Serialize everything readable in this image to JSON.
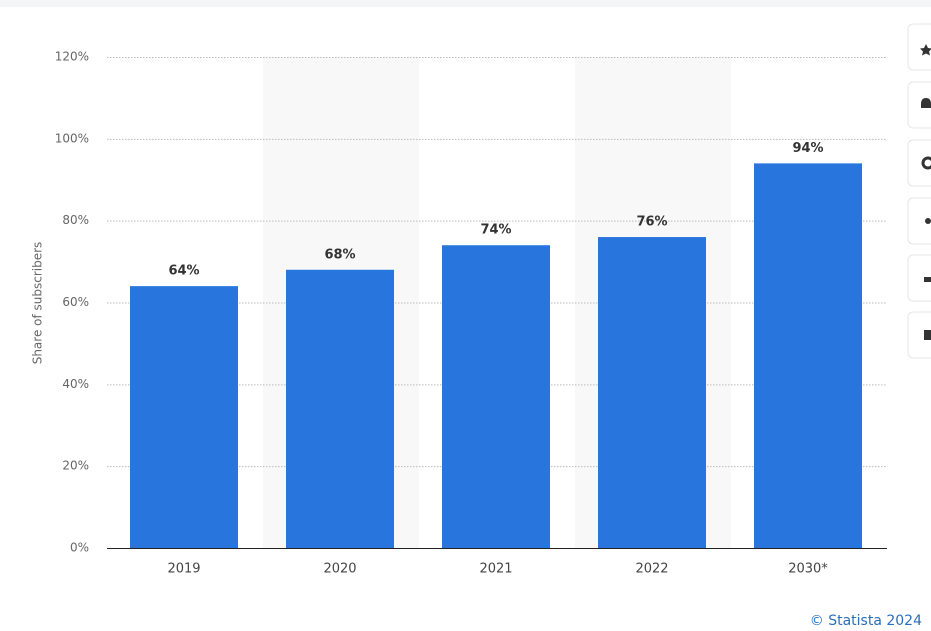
{
  "chart_data": {
    "type": "bar",
    "y_axis_label": "Share of subscribers",
    "categories": [
      "2019",
      "2020",
      "2021",
      "2022",
      "2030*"
    ],
    "values": [
      64,
      68,
      74,
      76,
      94
    ],
    "value_labels": [
      "64%",
      "68%",
      "74%",
      "76%",
      "94%"
    ],
    "color": "#2876dd",
    "ylim": [
      0,
      120
    ],
    "yticks": [
      {
        "value": 0,
        "label": "0%"
      },
      {
        "value": 20,
        "label": "20%"
      },
      {
        "value": 40,
        "label": "40%"
      },
      {
        "value": 60,
        "label": "60%"
      },
      {
        "value": 80,
        "label": "80%"
      },
      {
        "value": 100,
        "label": "100%"
      },
      {
        "value": 120,
        "label": "120%"
      }
    ],
    "grid": true,
    "credit": "© Statista 2024"
  }
}
